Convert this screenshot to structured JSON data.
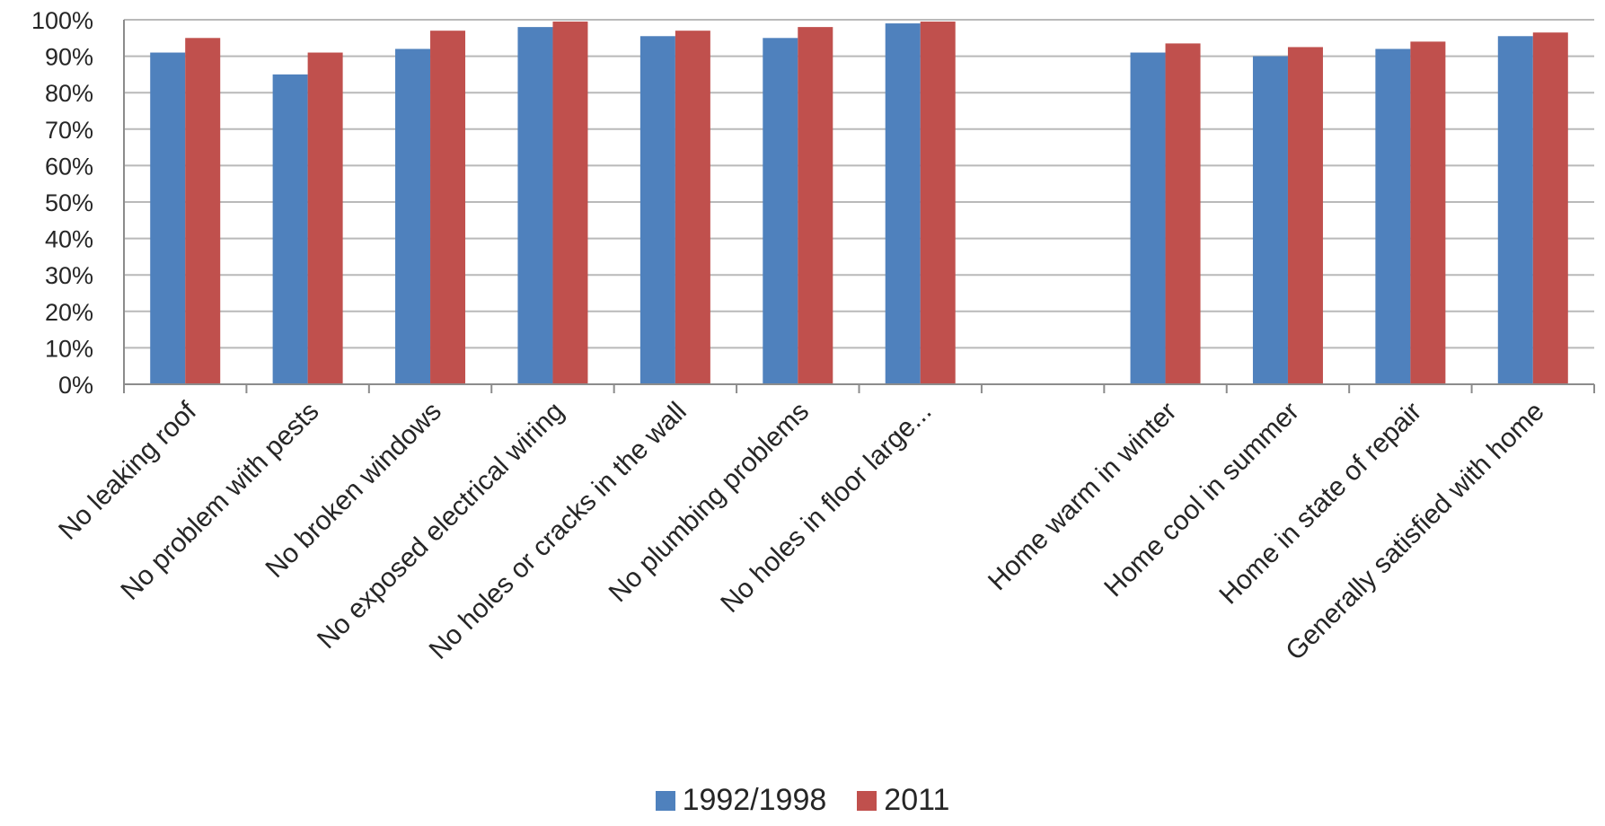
{
  "chart_data": {
    "type": "bar",
    "title": "",
    "xlabel": "",
    "ylabel": "",
    "ylim": [
      0,
      100
    ],
    "y_ticks": [
      "0%",
      "10%",
      "20%",
      "30%",
      "40%",
      "50%",
      "60%",
      "70%",
      "80%",
      "90%",
      "100%"
    ],
    "grid": "horizontal",
    "legend_position": "bottom",
    "categories": [
      "No leaking roof",
      "No problem with pests",
      "No broken windows",
      "No exposed electrical wiring",
      "No holes or cracks in the wall",
      "No plumbing problems",
      "No holes in floor large...",
      "",
      "Home warm in winter",
      "Home cool in summer",
      "Home in state of repair",
      "Generally satisfied with home"
    ],
    "series": [
      {
        "name": "1992/1998",
        "color": "#4F81BD",
        "values": [
          91,
          85,
          92,
          98,
          95.5,
          95,
          99,
          null,
          91,
          90,
          92,
          95.5
        ]
      },
      {
        "name": "2011",
        "color": "#C0504D",
        "values": [
          95,
          91,
          97,
          99.5,
          97,
          98,
          99.5,
          null,
          93.5,
          92.5,
          94,
          96.5
        ]
      }
    ]
  }
}
